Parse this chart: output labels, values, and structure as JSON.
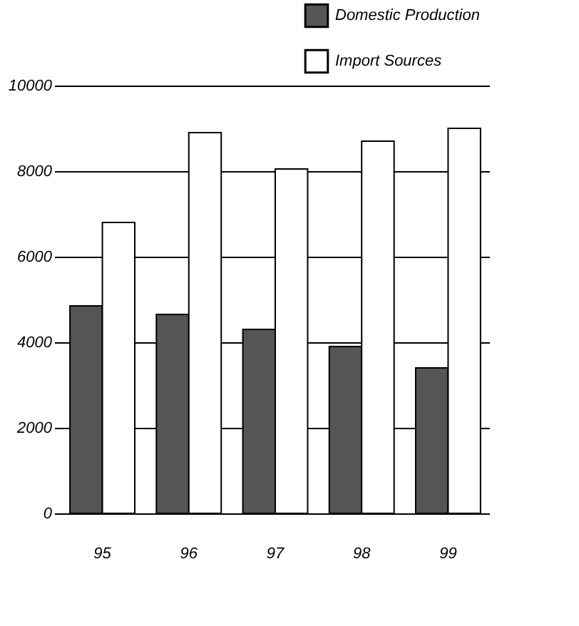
{
  "chart_data": {
    "type": "bar",
    "categories": [
      "95",
      "96",
      "97",
      "98",
      "99"
    ],
    "series": [
      {
        "name": "Domestic Production",
        "color": "#555555",
        "values": [
          4850,
          4650,
          4300,
          3900,
          3400
        ]
      },
      {
        "name": "Import Sources",
        "color": "#ffffff",
        "values": [
          6800,
          8900,
          8050,
          8700,
          9000
        ]
      }
    ],
    "ylim": [
      0,
      10000
    ],
    "yticks": [
      0,
      2000,
      4000,
      6000,
      8000,
      10000
    ],
    "grid": "y",
    "legend": "top right"
  }
}
